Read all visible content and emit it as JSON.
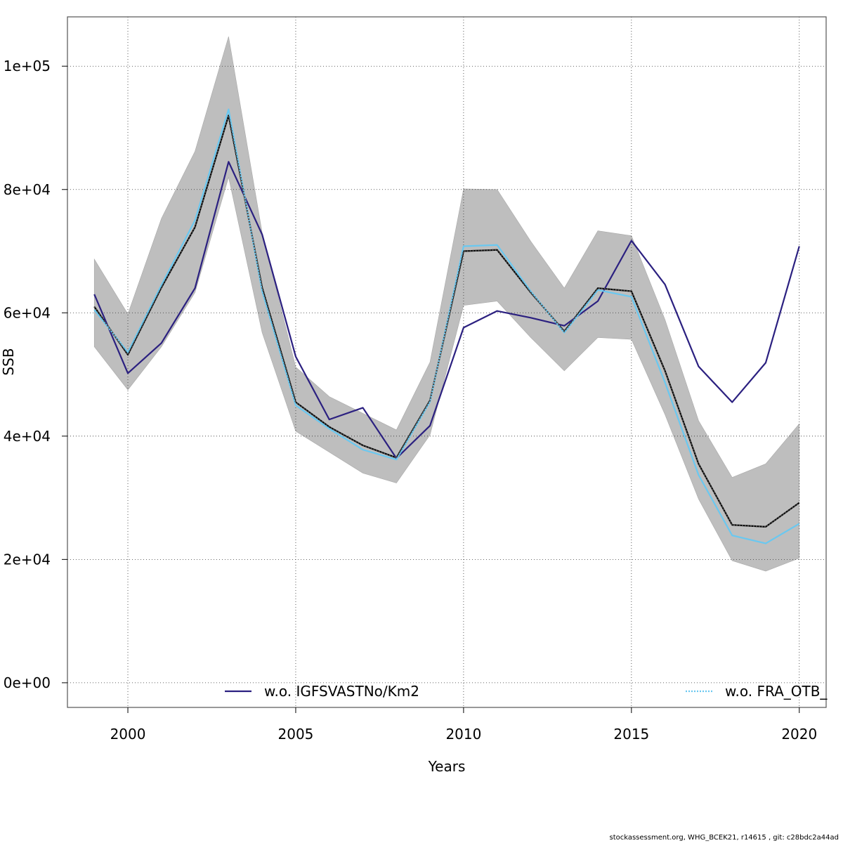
{
  "chart_data": {
    "type": "line",
    "title": "",
    "xlabel": "Years",
    "ylabel": "SSB",
    "xlim": [
      1998.2,
      2020.8
    ],
    "ylim": [
      -4000,
      108000
    ],
    "x_ticks": [
      2000,
      2005,
      2010,
      2015,
      2020
    ],
    "x_tick_labels": [
      "2000",
      "2005",
      "2010",
      "2015",
      "2020"
    ],
    "y_ticks": [
      0,
      20000,
      40000,
      60000,
      80000,
      100000
    ],
    "y_tick_labels": [
      "0e+00",
      "2e+04",
      "4e+04",
      "6e+04",
      "8e+04",
      "1e+05"
    ],
    "grid": true,
    "x": [
      1999,
      2000,
      2001,
      2002,
      2003,
      2004,
      2005,
      2006,
      2007,
      2008,
      2009,
      2010,
      2011,
      2012,
      2013,
      2014,
      2015,
      2016,
      2017,
      2018,
      2019,
      2020
    ],
    "band": {
      "upper": [
        68700,
        59800,
        75300,
        86200,
        104800,
        73000,
        51200,
        46400,
        43700,
        41000,
        52000,
        80100,
        80000,
        71600,
        64000,
        73300,
        72500,
        58900,
        42500,
        33300,
        35500,
        42000
      ],
      "lower": [
        54500,
        47500,
        54500,
        63300,
        82000,
        56800,
        40800,
        37400,
        34000,
        32400,
        40200,
        61200,
        61900,
        56000,
        50600,
        56000,
        55700,
        43500,
        29800,
        19800,
        18100,
        20200
      ],
      "color": "#bebebe"
    },
    "series": [
      {
        "name": "",
        "color": "#000000",
        "dash": "none",
        "values": [
          61000,
          53200,
          64100,
          73900,
          92000,
          64100,
          45500,
          41500,
          38500,
          36500,
          45800,
          70000,
          70200,
          63300,
          57000,
          64000,
          63500,
          50600,
          35500,
          25600,
          25300,
          29200
        ]
      },
      {
        "name": "w.o. IGFSVASTNo/Km2",
        "color": "#2b2080",
        "dash": "none",
        "values": [
          63000,
          50200,
          55100,
          64000,
          84500,
          72700,
          52900,
          42700,
          44600,
          36400,
          41700,
          57600,
          60300,
          59200,
          57900,
          61900,
          71700,
          64600,
          51300,
          45500,
          51900,
          70800
        ]
      },
      {
        "name": "w.o. FRA_OTB_",
        "color": "#6ac8f0",
        "dash": "none",
        "values": [
          60500,
          53600,
          64500,
          75000,
          93000,
          63500,
          45000,
          41200,
          37800,
          36200,
          45600,
          70800,
          71000,
          63500,
          56800,
          63700,
          62600,
          48700,
          33700,
          23900,
          22600,
          25800
        ]
      },
      {
        "name": "",
        "color": "#4a4a4a",
        "dash": "2,2",
        "values": [
          61000,
          53200,
          64100,
          73900,
          92000,
          64100,
          45500,
          41500,
          38500,
          36500,
          45800,
          70000,
          70200,
          63300,
          57000,
          64000,
          63500,
          50600,
          35500,
          25600,
          25300,
          29200
        ]
      }
    ],
    "legend": [
      {
        "label": "w.o. IGFSVASTNo/Km2",
        "color": "#2b2080",
        "dash": "none"
      },
      {
        "label": "w.o. FRA_OTB_",
        "color": "#6ac8f0",
        "dash": "2,2"
      }
    ],
    "legend_placement": "bottom"
  },
  "footer": "stockassessment.org, WHG_BCEK21, r14615 , git: c28bdc2a44ad"
}
